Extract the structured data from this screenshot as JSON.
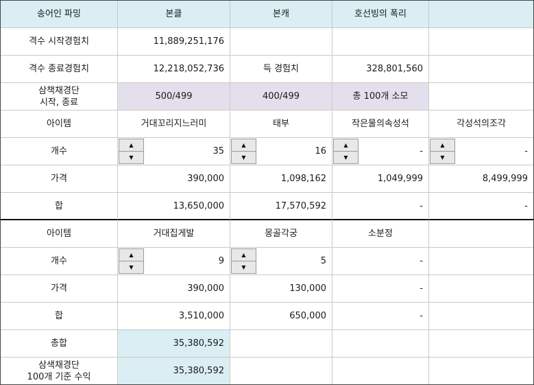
{
  "header": [
    "송어인 파밍",
    "본클",
    "본캐",
    "호선빙의 폭리",
    ""
  ],
  "exp_start": {
    "label": "격수 시작경험치",
    "value": "11,889,251,176"
  },
  "exp_end": {
    "label": "격수 종료경험치",
    "value": "12,218,052,736",
    "gain_label": "득 경험치",
    "gain_value": "328,801,560"
  },
  "team": {
    "label_line1": "삼책채경단",
    "label_line2": "시작, 종료",
    "bonclass": "500/499",
    "bonchar": "400/499",
    "total": "총 100개 소모"
  },
  "section1": {
    "item_label": "아이템",
    "count_label": "개수",
    "price_label": "가격",
    "sum_label": "합",
    "items": [
      {
        "name": "거대꼬리지느러미",
        "count": "35",
        "price": "390,000",
        "sum": "13,650,000"
      },
      {
        "name": "태부",
        "count": "16",
        "price": "1,098,162",
        "sum": "17,570,592"
      },
      {
        "name": "작은물의속성석",
        "count": "-",
        "price": "1,049,999",
        "sum": "-"
      },
      {
        "name": "각성석의조각",
        "count": "-",
        "price": "8,499,999",
        "sum": "-"
      }
    ]
  },
  "section2": {
    "item_label": "아이템",
    "count_label": "개수",
    "price_label": "가격",
    "sum_label": "합",
    "items": [
      {
        "name": "거대집게발",
        "count": "9",
        "price": "390,000",
        "sum": "3,510,000"
      },
      {
        "name": "몽골각궁",
        "count": "5",
        "price": "130,000",
        "sum": "650,000"
      },
      {
        "name": "소분정",
        "count": "-",
        "price": "-",
        "sum": "-"
      }
    ]
  },
  "totals": {
    "total_label": "총합",
    "total_value": "35,380,592",
    "profit_label_line1": "삼색채경단",
    "profit_label_line2": "100개 기준 수익",
    "profit_value": "35,380,592"
  },
  "spinner_icons": {
    "up": "▲",
    "down": "▼"
  },
  "colors": {
    "header_bg": "#daeef3",
    "highlight_bg": "#e4dfec"
  }
}
